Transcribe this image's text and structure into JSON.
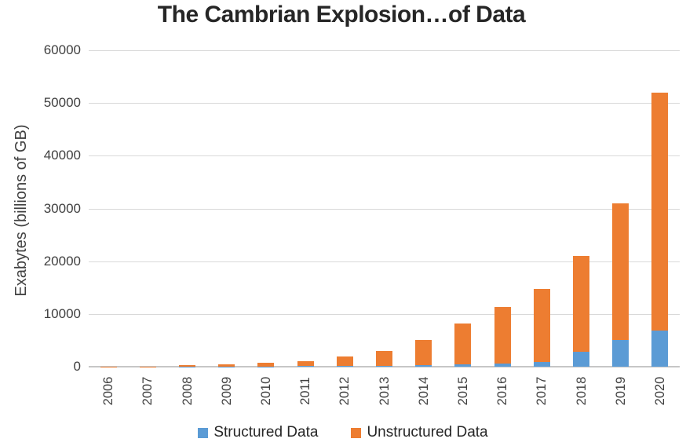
{
  "title": "The Cambrian Explosion…of Data",
  "y_axis_title": "Exabytes (billions of GB)",
  "colors": {
    "structured": "#5B9BD5",
    "unstructured": "#ED7D31",
    "gridline": "#D9D9D9",
    "axis_line": "#C6C6C6",
    "text": "#404040"
  },
  "legend": {
    "items": [
      {
        "label": "Structured Data",
        "color": "#5B9BD5"
      },
      {
        "label": "Unstructured Data",
        "color": "#ED7D31"
      }
    ]
  },
  "chart_data": {
    "type": "bar",
    "stacked": true,
    "title": "The Cambrian Explosion…of Data",
    "xlabel": "",
    "ylabel": "Exabytes (billions of GB)",
    "categories": [
      "2006",
      "2007",
      "2008",
      "2009",
      "2010",
      "2011",
      "2012",
      "2013",
      "2014",
      "2015",
      "2016",
      "2017",
      "2018",
      "2019",
      "2020"
    ],
    "series": [
      {
        "name": "Structured Data",
        "color": "#5B9BD5",
        "values": [
          5,
          10,
          25,
          50,
          75,
          100,
          150,
          200,
          300,
          400,
          600,
          900,
          2900,
          5000,
          6900
        ]
      },
      {
        "name": "Unstructured Data",
        "color": "#ED7D31",
        "values": [
          15,
          40,
          225,
          450,
          625,
          1000,
          1850,
          2800,
          4700,
          7800,
          10700,
          13900,
          18100,
          26000,
          45100
        ]
      }
    ],
    "totals": [
      20,
      50,
      250,
      500,
      700,
      1100,
      2000,
      3000,
      5000,
      8200,
      11300,
      14800,
      21000,
      31000,
      52000
    ],
    "ylim": [
      0,
      60000
    ],
    "ytick_step": 10000,
    "ytick_labels": [
      "0",
      "10000",
      "20000",
      "30000",
      "40000",
      "50000",
      "60000"
    ],
    "grid": true,
    "legend_position": "bottom"
  }
}
